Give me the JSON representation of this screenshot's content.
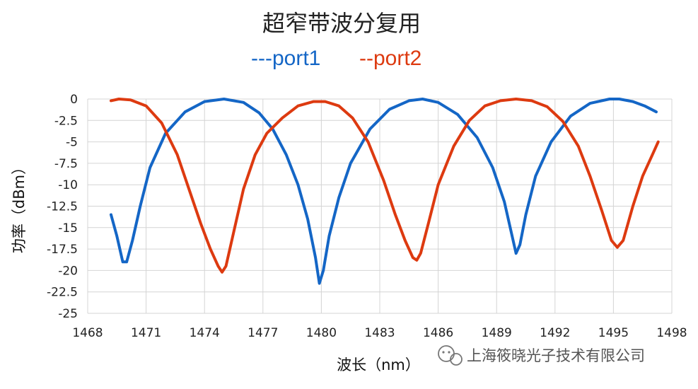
{
  "chart_data": {
    "type": "line",
    "title": "超窄带波分复用",
    "legend": [
      "---port1",
      "--port2"
    ],
    "xlabel": "波长（nm）",
    "ylabel": "功率（dBm）",
    "xlim": [
      1468,
      1498
    ],
    "ylim": [
      -25,
      0
    ],
    "xticks": [
      "1468",
      "1471",
      "1474",
      "1477",
      "1480",
      "1483",
      "1486",
      "1489",
      "1492",
      "1495",
      "1498"
    ],
    "yticks": [
      "0",
      "-2.5",
      "-5",
      "-7.5",
      "-10",
      "-12.5",
      "-15",
      "-17.5",
      "-20",
      "-22.5",
      "-25"
    ],
    "grid": true,
    "series": [
      {
        "name": "port1",
        "color": "#1466c6",
        "x": [
          1469.2,
          1469.5,
          1469.8,
          1470.0,
          1470.3,
          1470.7,
          1471.2,
          1472.0,
          1473.0,
          1474.0,
          1475.0,
          1476.0,
          1476.8,
          1477.5,
          1478.2,
          1478.8,
          1479.3,
          1479.7,
          1479.9,
          1480.1,
          1480.4,
          1480.9,
          1481.5,
          1482.5,
          1483.5,
          1484.5,
          1485.2,
          1486.0,
          1487.0,
          1488.0,
          1488.8,
          1489.4,
          1489.8,
          1490.0,
          1490.2,
          1490.5,
          1491.0,
          1491.8,
          1492.8,
          1493.8,
          1494.8,
          1495.3,
          1496.0,
          1496.6,
          1497.2
        ],
        "y": [
          -13.5,
          -16,
          -19,
          -19,
          -16.5,
          -12.5,
          -8,
          -4,
          -1.5,
          -0.3,
          0,
          -0.4,
          -1.6,
          -3.5,
          -6.5,
          -10,
          -14,
          -18.5,
          -21.5,
          -20,
          -16,
          -11.5,
          -7.5,
          -3.5,
          -1.2,
          -0.2,
          0,
          -0.4,
          -1.8,
          -4.5,
          -8,
          -12,
          -16,
          -18,
          -17,
          -13.5,
          -9,
          -5,
          -2,
          -0.5,
          0,
          0,
          -0.3,
          -0.8,
          -1.5
        ]
      },
      {
        "name": "port2",
        "color": "#dd3a10",
        "x": [
          1469.2,
          1469.6,
          1470.2,
          1471.0,
          1471.8,
          1472.6,
          1473.2,
          1473.8,
          1474.3,
          1474.7,
          1474.9,
          1475.1,
          1475.5,
          1476.0,
          1476.6,
          1477.2,
          1478.0,
          1478.8,
          1479.6,
          1480.2,
          1480.9,
          1481.6,
          1482.4,
          1483.2,
          1483.8,
          1484.3,
          1484.7,
          1484.9,
          1485.1,
          1485.5,
          1486.0,
          1486.8,
          1487.6,
          1488.4,
          1489.2,
          1490.0,
          1490.8,
          1491.6,
          1492.4,
          1493.2,
          1493.8,
          1494.4,
          1494.9,
          1495.2,
          1495.5,
          1496.0,
          1496.5,
          1497.0,
          1497.3
        ],
        "y": [
          -0.2,
          0,
          -0.1,
          -0.8,
          -2.8,
          -6.5,
          -10.5,
          -14.5,
          -17.5,
          -19.5,
          -20.2,
          -19.5,
          -15.5,
          -10.5,
          -6.5,
          -4,
          -2.2,
          -0.8,
          -0.3,
          -0.3,
          -0.8,
          -2.2,
          -5,
          -9.5,
          -13.5,
          -16.5,
          -18.5,
          -18.8,
          -18,
          -14.5,
          -10,
          -5.5,
          -2.5,
          -0.8,
          -0.2,
          0,
          -0.2,
          -0.9,
          -2.6,
          -5.5,
          -9,
          -13,
          -16.5,
          -17.3,
          -16.5,
          -12.5,
          -9,
          -6.5,
          -5
        ]
      }
    ]
  },
  "watermark": "上海筱晓光子技术有限公司"
}
